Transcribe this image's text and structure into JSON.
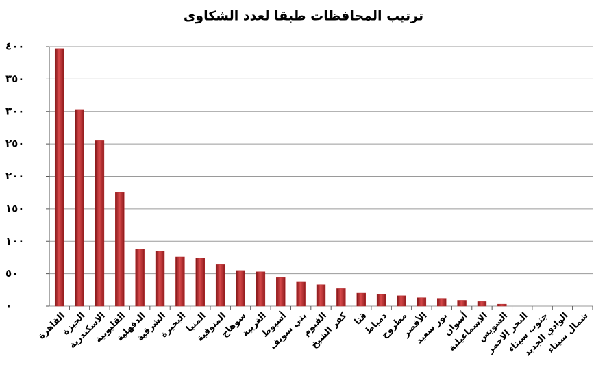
{
  "chart_data": {
    "type": "bar",
    "title": "ترتيب المحافظات طبقا لعدد الشكاوى",
    "categories": [
      "القاهرة",
      "الجيزة",
      "الاسكندرية",
      "القليوبية",
      "الدقهلية",
      "الشرقية",
      "البحيرة",
      "المنيا",
      "المنوفية",
      "سوهاج",
      "الغربية",
      "أسيوط",
      "بني سويف",
      "الفيوم",
      "كفر الشيخ",
      "قنا",
      "دمياط",
      "مطروح",
      "الأقصر",
      "بور سعيد",
      "أسوان",
      "الاسماعيلية",
      "السويس",
      "البحر الاحمر",
      "جنوب سيناء",
      "الوادي الجديد",
      "شمال سيناء"
    ],
    "values": [
      397,
      303,
      255,
      175,
      88,
      85,
      76,
      74,
      64,
      55,
      53,
      44,
      37,
      33,
      27,
      20,
      18,
      16,
      13,
      12,
      9,
      7,
      3,
      0,
      0,
      0,
      0
    ],
    "color": "#b5282a",
    "ylim": [
      0,
      400
    ],
    "yticks": [
      {
        "value": 0,
        "label": "٠"
      },
      {
        "value": 50,
        "label": "٥٠"
      },
      {
        "value": 100,
        "label": "١٠٠"
      },
      {
        "value": 150,
        "label": "١٥٠"
      },
      {
        "value": 200,
        "label": "٢٠٠"
      },
      {
        "value": 250,
        "label": "٢٥٠"
      },
      {
        "value": 300,
        "label": "٣٠٠"
      },
      {
        "value": 350,
        "label": "٣٥٠"
      },
      {
        "value": 400,
        "label": "٤٠٠"
      }
    ],
    "grid": true
  }
}
